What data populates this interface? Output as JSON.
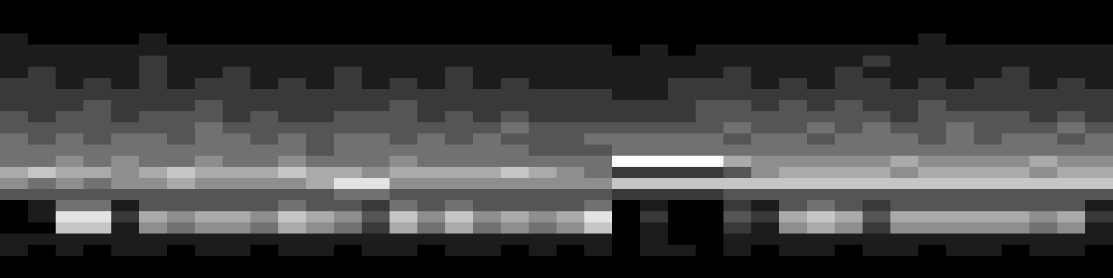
{
  "chart_data": {
    "type": "heatmap",
    "tick_labels": false,
    "color": "#ffffff",
    "color_range": [
      0,
      9
    ],
    "cells": [
      [
        0,
        0,
        0,
        0,
        0,
        0,
        0,
        0,
        0,
        0,
        0,
        0,
        0,
        0,
        0,
        0,
        0,
        0,
        0,
        0,
        0,
        0,
        0,
        0,
        0,
        0,
        0,
        0,
        0,
        0,
        0,
        0,
        0,
        0,
        0,
        0,
        0,
        0,
        0,
        0
      ],
      [
        0,
        0,
        0,
        0,
        0,
        0,
        0,
        0,
        0,
        0,
        0,
        0,
        0,
        0,
        0,
        0,
        0,
        0,
        0,
        0,
        0,
        0,
        0,
        0,
        0,
        0,
        0,
        0,
        0,
        0,
        0,
        0,
        0,
        0,
        0,
        0,
        0,
        0,
        0,
        0
      ],
      [
        0,
        0,
        0,
        0,
        0,
        0,
        0,
        0,
        0,
        0,
        0,
        0,
        0,
        0,
        0,
        0,
        0,
        0,
        0,
        0,
        0,
        0,
        0,
        0,
        0,
        0,
        0,
        0,
        0,
        0,
        0,
        0,
        0,
        0,
        0,
        0,
        0,
        0,
        0,
        0
      ],
      [
        1,
        0,
        0,
        0,
        0,
        1,
        0,
        0,
        0,
        0,
        0,
        0,
        0,
        0,
        0,
        0,
        0,
        0,
        0,
        0,
        0,
        0,
        0,
        0,
        0,
        0,
        0,
        0,
        0,
        0,
        0,
        0,
        0,
        1,
        0,
        0,
        0,
        0,
        0,
        0
      ],
      [
        1,
        1,
        1,
        1,
        1,
        1,
        1,
        1,
        1,
        1,
        1,
        1,
        1,
        1,
        1,
        1,
        1,
        1,
        1,
        1,
        1,
        1,
        0,
        1,
        0,
        1,
        1,
        1,
        1,
        1,
        1,
        1,
        1,
        1,
        1,
        1,
        1,
        1,
        1,
        1
      ],
      [
        1,
        1,
        1,
        1,
        1,
        2,
        1,
        1,
        1,
        1,
        1,
        1,
        1,
        1,
        1,
        1,
        1,
        1,
        1,
        1,
        1,
        1,
        1,
        1,
        1,
        1,
        1,
        1,
        1,
        1,
        1,
        2,
        1,
        1,
        1,
        1,
        1,
        1,
        1,
        1
      ],
      [
        1,
        2,
        1,
        1,
        1,
        2,
        1,
        1,
        2,
        1,
        1,
        1,
        2,
        1,
        1,
        1,
        2,
        1,
        1,
        1,
        1,
        1,
        1,
        1,
        1,
        1,
        2,
        1,
        1,
        1,
        2,
        1,
        1,
        1,
        1,
        1,
        2,
        1,
        1,
        1
      ],
      [
        2,
        2,
        1,
        2,
        1,
        2,
        1,
        2,
        2,
        1,
        2,
        1,
        2,
        1,
        2,
        1,
        2,
        1,
        2,
        1,
        1,
        1,
        1,
        1,
        2,
        2,
        2,
        1,
        2,
        1,
        2,
        2,
        1,
        2,
        1,
        2,
        2,
        1,
        2,
        1
      ],
      [
        2,
        2,
        2,
        2,
        2,
        2,
        2,
        2,
        2,
        2,
        2,
        2,
        2,
        2,
        2,
        2,
        2,
        2,
        2,
        2,
        2,
        2,
        1,
        1,
        2,
        2,
        2,
        2,
        2,
        2,
        2,
        2,
        2,
        2,
        2,
        2,
        2,
        2,
        2,
        2
      ],
      [
        2,
        2,
        2,
        3,
        2,
        2,
        2,
        3,
        2,
        2,
        2,
        2,
        2,
        2,
        3,
        2,
        2,
        2,
        2,
        2,
        2,
        2,
        2,
        2,
        2,
        3,
        3,
        2,
        3,
        2,
        3,
        2,
        2,
        3,
        2,
        2,
        2,
        2,
        2,
        2
      ],
      [
        3,
        2,
        3,
        3,
        2,
        3,
        3,
        3,
        2,
        3,
        2,
        2,
        3,
        3,
        3,
        2,
        3,
        2,
        3,
        2,
        2,
        2,
        2,
        2,
        2,
        3,
        3,
        3,
        3,
        3,
        3,
        3,
        2,
        3,
        3,
        3,
        3,
        2,
        3,
        2
      ],
      [
        3,
        3,
        3,
        3,
        3,
        3,
        3,
        4,
        3,
        3,
        3,
        3,
        3,
        3,
        3,
        3,
        3,
        3,
        4,
        3,
        3,
        3,
        3,
        3,
        3,
        3,
        4,
        3,
        3,
        4,
        3,
        4,
        3,
        3,
        4,
        3,
        3,
        3,
        4,
        3
      ],
      [
        4,
        3,
        4,
        3,
        4,
        4,
        3,
        4,
        4,
        3,
        4,
        3,
        4,
        4,
        3,
        4,
        3,
        4,
        3,
        3,
        3,
        4,
        4,
        4,
        4,
        4,
        3,
        4,
        4,
        3,
        4,
        4,
        4,
        3,
        4,
        3,
        4,
        4,
        3,
        4
      ],
      [
        4,
        4,
        4,
        4,
        4,
        4,
        4,
        4,
        4,
        4,
        4,
        3,
        4,
        4,
        4,
        4,
        4,
        4,
        4,
        3,
        3,
        3,
        4,
        4,
        4,
        4,
        4,
        4,
        4,
        4,
        4,
        4,
        4,
        4,
        4,
        4,
        4,
        4,
        4,
        4
      ],
      [
        4,
        4,
        5,
        4,
        5,
        4,
        4,
        5,
        4,
        4,
        5,
        4,
        4,
        4,
        5,
        4,
        4,
        4,
        4,
        4,
        4,
        4,
        9,
        9,
        9,
        9,
        6,
        5,
        5,
        5,
        5,
        5,
        6,
        5,
        5,
        5,
        5,
        6,
        5,
        5
      ],
      [
        6,
        7,
        6,
        6,
        5,
        6,
        7,
        6,
        6,
        6,
        7,
        6,
        6,
        5,
        6,
        6,
        6,
        6,
        7,
        6,
        5,
        4,
        2,
        2,
        2,
        2,
        3,
        5,
        6,
        6,
        6,
        6,
        5,
        6,
        6,
        6,
        6,
        5,
        6,
        6
      ],
      [
        5,
        4,
        5,
        4,
        5,
        5,
        6,
        5,
        5,
        5,
        5,
        6,
        8,
        8,
        5,
        5,
        5,
        5,
        5,
        5,
        5,
        5,
        7,
        7,
        7,
        7,
        7,
        7,
        7,
        7,
        7,
        7,
        7,
        7,
        7,
        7,
        7,
        7,
        7,
        7
      ],
      [
        3,
        3,
        3,
        3,
        3,
        3,
        3,
        3,
        3,
        3,
        3,
        3,
        4,
        4,
        3,
        3,
        3,
        3,
        3,
        3,
        3,
        3,
        2,
        2,
        2,
        2,
        3,
        3,
        3,
        3,
        3,
        3,
        3,
        3,
        3,
        3,
        3,
        3,
        3,
        3
      ],
      [
        0,
        1,
        4,
        4,
        1,
        3,
        3,
        3,
        3,
        3,
        4,
        3,
        3,
        2,
        4,
        3,
        4,
        3,
        3,
        3,
        3,
        4,
        0,
        1,
        0,
        0,
        2,
        1,
        3,
        4,
        3,
        2,
        3,
        3,
        3,
        3,
        3,
        3,
        3,
        1
      ],
      [
        0,
        1,
        8,
        8,
        2,
        6,
        5,
        6,
        6,
        5,
        7,
        6,
        5,
        3,
        7,
        5,
        7,
        5,
        6,
        5,
        6,
        8,
        0,
        2,
        0,
        0,
        3,
        2,
        6,
        7,
        6,
        3,
        6,
        6,
        6,
        6,
        6,
        5,
        6,
        2
      ],
      [
        0,
        0,
        7,
        7,
        1,
        5,
        4,
        5,
        5,
        4,
        6,
        5,
        4,
        2,
        6,
        4,
        6,
        4,
        5,
        4,
        5,
        7,
        0,
        1,
        0,
        0,
        2,
        1,
        5,
        6,
        5,
        2,
        5,
        5,
        5,
        5,
        5,
        4,
        5,
        1
      ],
      [
        1,
        1,
        1,
        1,
        1,
        1,
        1,
        1,
        1,
        1,
        1,
        1,
        1,
        1,
        1,
        1,
        1,
        1,
        1,
        1,
        1,
        1,
        0,
        1,
        0,
        0,
        1,
        1,
        1,
        1,
        1,
        1,
        1,
        1,
        1,
        1,
        1,
        1,
        1,
        1
      ],
      [
        1,
        0,
        1,
        0,
        1,
        1,
        0,
        1,
        1,
        0,
        1,
        1,
        0,
        1,
        1,
        0,
        1,
        1,
        0,
        1,
        0,
        1,
        0,
        1,
        1,
        0,
        1,
        0,
        1,
        1,
        0,
        1,
        1,
        0,
        1,
        1,
        0,
        1,
        1,
        0
      ],
      [
        0,
        0,
        0,
        0,
        0,
        0,
        0,
        0,
        0,
        0,
        0,
        0,
        0,
        0,
        0,
        0,
        0,
        0,
        0,
        0,
        0,
        0,
        0,
        0,
        0,
        0,
        0,
        0,
        0,
        0,
        0,
        0,
        0,
        0,
        0,
        0,
        0,
        0,
        0,
        0
      ],
      [
        0,
        0,
        0,
        0,
        0,
        0,
        0,
        0,
        0,
        0,
        0,
        0,
        0,
        0,
        0,
        0,
        0,
        0,
        0,
        0,
        0,
        0,
        0,
        0,
        0,
        0,
        0,
        0,
        0,
        0,
        0,
        0,
        0,
        0,
        0,
        0,
        0,
        0,
        0,
        0
      ]
    ]
  }
}
